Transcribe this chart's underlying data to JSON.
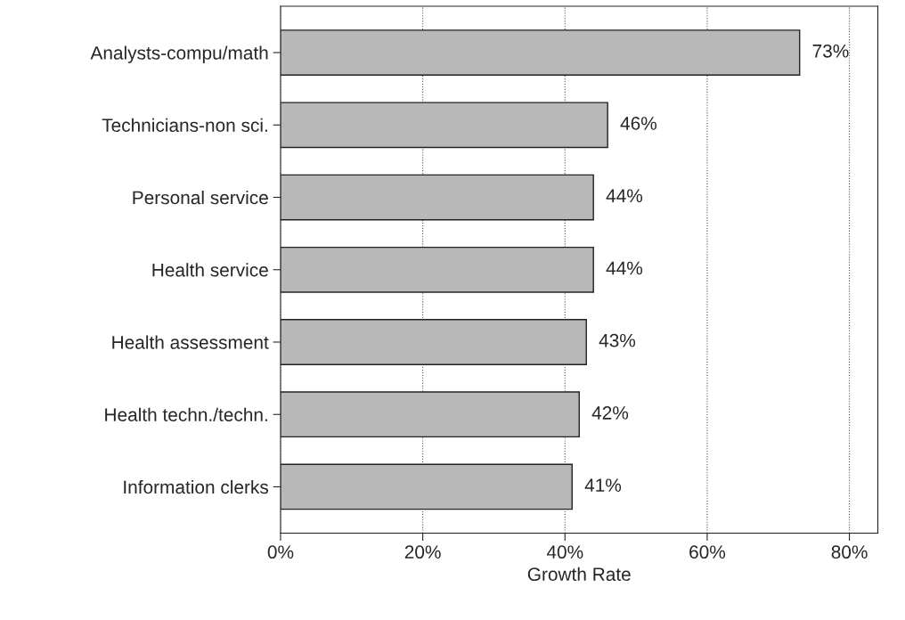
{
  "chart_data": {
    "type": "bar",
    "orientation": "horizontal",
    "xlabel": "Growth Rate",
    "categories": [
      "Analysts-compu/math",
      "Technicians-non sci.",
      "Personal service",
      "Health service",
      "Health assessment",
      "Health techn./techn.",
      "Information clerks"
    ],
    "values": [
      73,
      46,
      44,
      44,
      43,
      42,
      41
    ],
    "value_labels": [
      "73%",
      "46%",
      "44%",
      "44%",
      "43%",
      "42%",
      "41%"
    ],
    "color": "#b8b8b8",
    "xlim": [
      0,
      84
    ],
    "xticks": [
      {
        "value": 0,
        "label": "0%"
      },
      {
        "value": 20,
        "label": "20%"
      },
      {
        "value": 40,
        "label": "40%"
      },
      {
        "value": 60,
        "label": "60%"
      },
      {
        "value": 80,
        "label": "80%"
      }
    ],
    "grid": "x"
  }
}
